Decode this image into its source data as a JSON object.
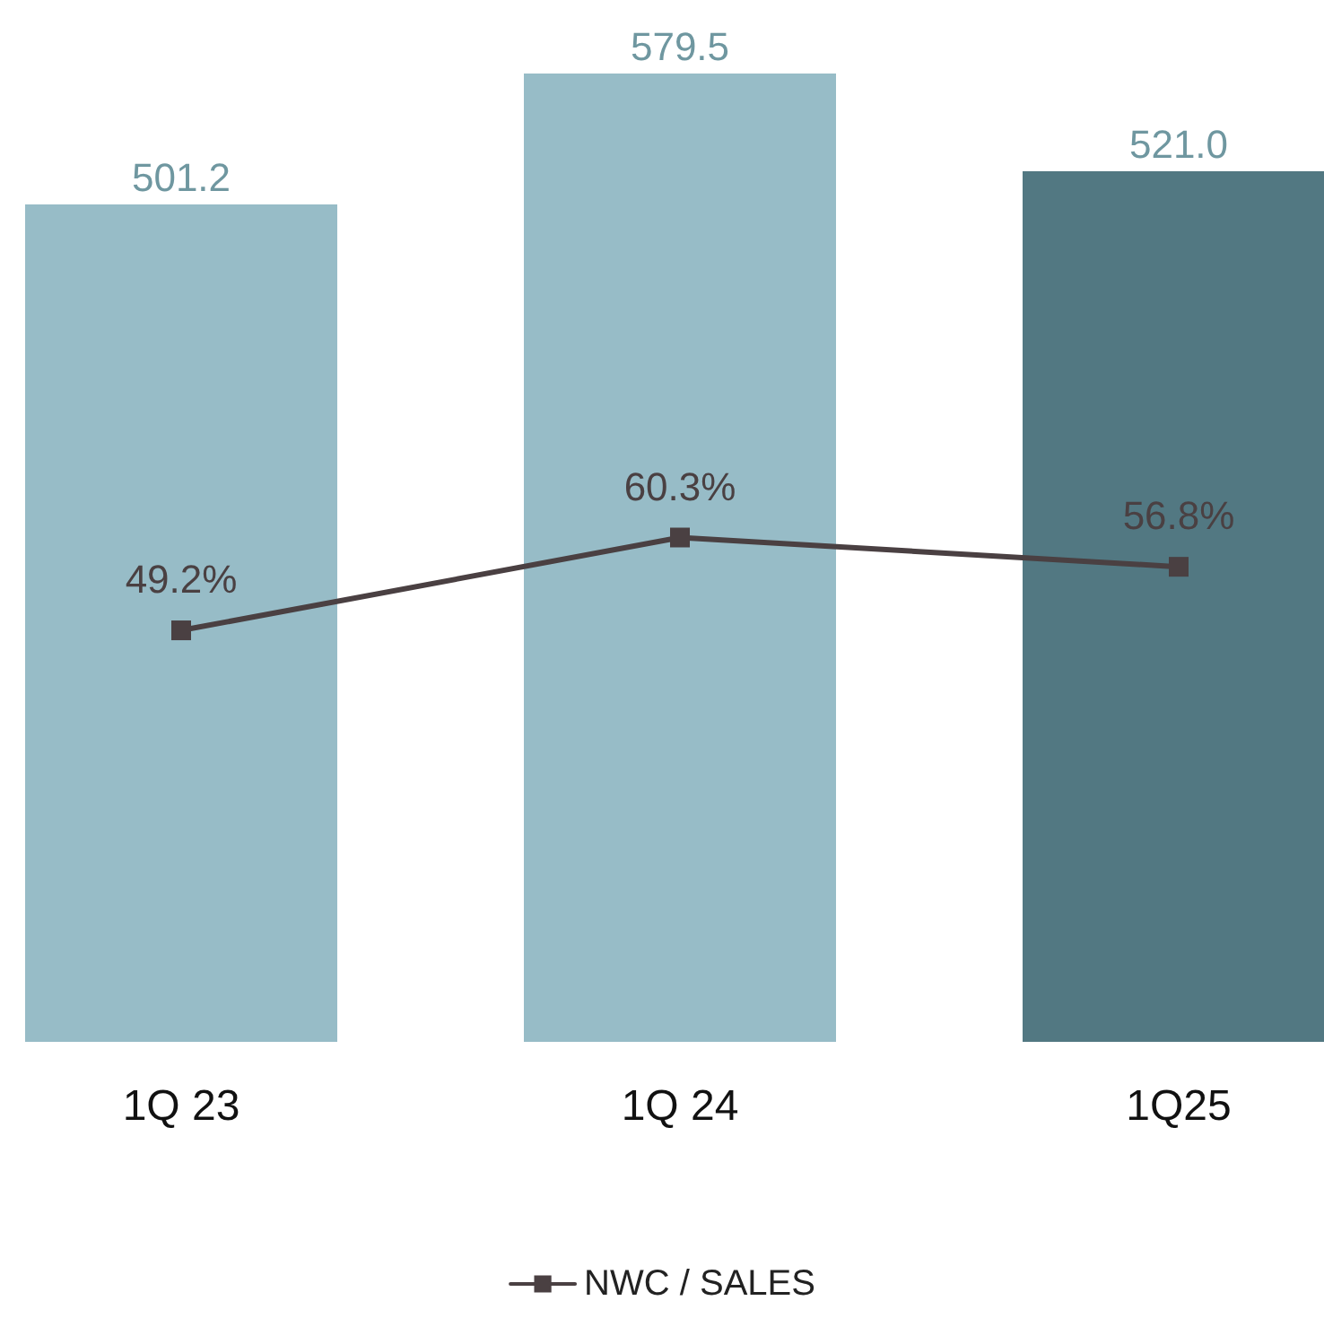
{
  "chart_data": {
    "type": "bar",
    "categories": [
      "1Q 23",
      "1Q 24",
      "1Q25"
    ],
    "series": [
      {
        "colors": [
          "#97bcc7",
          "#97bcc7",
          "#527882"
        ],
        "values": [
          501.2,
          579.5,
          521.0
        ],
        "value_labels": [
          "501.2",
          "579.5",
          "521.0"
        ]
      },
      {
        "type": "line",
        "name": "NWC / SALES",
        "color": "#4a4042",
        "axis": "y2",
        "values": [
          49.2,
          60.3,
          56.8
        ],
        "value_labels": [
          "49.2%",
          "60.3%",
          "56.8%"
        ]
      }
    ],
    "legend": "bottom",
    "marker": "square",
    "line_style": "solid",
    "tick_labels": "x"
  }
}
